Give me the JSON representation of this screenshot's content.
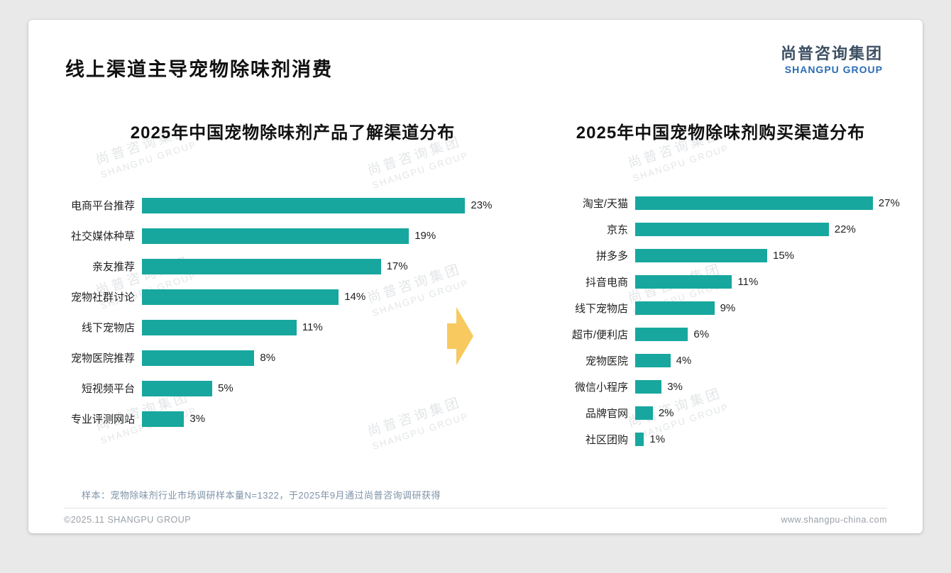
{
  "page": {
    "title": "线上渠道主导宠物除味剂消费",
    "logo": {
      "cn": "尚普咨询集团",
      "en": "SHANGPU GROUP"
    },
    "watermark": {
      "line1": "尚普咨询集团",
      "line2": "SHANGPU GROUP"
    },
    "footnote": "样本：宠物除味剂行业市场调研样本量N=1322，于2025年9月通过尚普咨询调研获得",
    "footer_left": "©2025.11 SHANGPU GROUP",
    "footer_right": "www.shangpu-china.com"
  },
  "colors": {
    "bar": "#17a79f",
    "arrow": "#f7c95e",
    "logo_blue": "#2a6cb5",
    "logo_dark": "#3d4f63"
  },
  "chart_data": [
    {
      "type": "bar",
      "orientation": "horizontal",
      "title": "2025年中国宠物除味剂产品了解渠道分布",
      "categories": [
        "电商平台推荐",
        "社交媒体种草",
        "亲友推荐",
        "宠物社群讨论",
        "线下宠物店",
        "宠物医院推荐",
        "短视频平台",
        "专业评测网站"
      ],
      "values": [
        23,
        19,
        17,
        14,
        11,
        8,
        5,
        3
      ],
      "unit": "%",
      "xlim": [
        0,
        25
      ],
      "grid": false,
      "value_labels": "end-of-bar"
    },
    {
      "type": "bar",
      "orientation": "horizontal",
      "title": "2025年中国宠物除味剂购买渠道分布",
      "categories": [
        "淘宝/天猫",
        "京东",
        "拼多多",
        "抖音电商",
        "线下宠物店",
        "超市/便利店",
        "宠物医院",
        "微信小程序",
        "品牌官网",
        "社区团购"
      ],
      "values": [
        27,
        22,
        15,
        11,
        9,
        6,
        4,
        3,
        2,
        1
      ],
      "unit": "%",
      "xlim": [
        0,
        30
      ],
      "grid": false,
      "value_labels": "end-of-bar"
    }
  ]
}
